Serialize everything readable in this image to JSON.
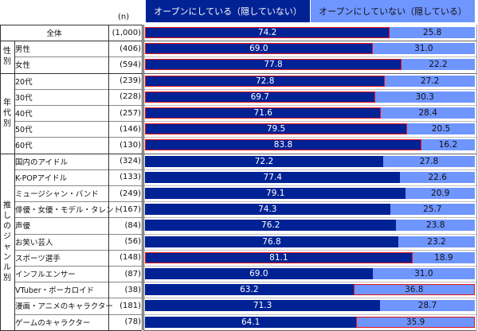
{
  "chart_data": {
    "type": "bar",
    "orientation": "horizontal",
    "stacked": true,
    "percent": true,
    "n_header": "(n)",
    "series": [
      {
        "name": "オープンにしている（隠していない）",
        "color": "#002294"
      },
      {
        "name": "オープンにしていない（隠している）",
        "color": "#6f95ff"
      }
    ],
    "highlight_color": "#e8141c",
    "groups": [
      {
        "label": "",
        "rows": [
          {
            "label": "全体",
            "n": "(1,000)",
            "open": "74.2",
            "hidden": "25.8",
            "highlight": "open"
          }
        ]
      },
      {
        "label": "性別",
        "rows": [
          {
            "label": "男性",
            "n": "(406)",
            "open": "69.0",
            "hidden": "31.0",
            "highlight": "open"
          },
          {
            "label": "女性",
            "n": "(594)",
            "open": "77.8",
            "hidden": "22.2",
            "highlight": "open"
          }
        ]
      },
      {
        "label": "年代別",
        "rows": [
          {
            "label": "20代",
            "n": "(239)",
            "open": "72.8",
            "hidden": "27.2",
            "highlight": "open"
          },
          {
            "label": "30代",
            "n": "(228)",
            "open": "69.7",
            "hidden": "30.3",
            "highlight": "open"
          },
          {
            "label": "40代",
            "n": "(257)",
            "open": "71.6",
            "hidden": "28.4",
            "highlight": "open"
          },
          {
            "label": "50代",
            "n": "(146)",
            "open": "79.5",
            "hidden": "20.5",
            "highlight": "open"
          },
          {
            "label": "60代",
            "n": "(130)",
            "open": "83.8",
            "hidden": "16.2",
            "highlight": "open"
          }
        ]
      },
      {
        "label": "推しのジャンル別",
        "rows": [
          {
            "label": "国内のアイドル",
            "n": "(324)",
            "open": "72.2",
            "hidden": "27.8",
            "highlight": ""
          },
          {
            "label": "K-POPアイドル",
            "n": "(133)",
            "open": "77.4",
            "hidden": "22.6",
            "highlight": ""
          },
          {
            "label": "ミュージシャン・バンド",
            "n": "(249)",
            "open": "79.1",
            "hidden": "20.9",
            "highlight": ""
          },
          {
            "label": "俳優・女優・モデル・タレント",
            "n": "(167)",
            "open": "74.3",
            "hidden": "25.7",
            "highlight": ""
          },
          {
            "label": "声優",
            "n": "(84)",
            "open": "76.2",
            "hidden": "23.8",
            "highlight": ""
          },
          {
            "label": "お笑い芸人",
            "n": "(56)",
            "open": "76.8",
            "hidden": "23.2",
            "highlight": ""
          },
          {
            "label": "スポーツ選手",
            "n": "(148)",
            "open": "81.1",
            "hidden": "18.9",
            "highlight": "open"
          },
          {
            "label": "インフルエンサー",
            "n": "(87)",
            "open": "69.0",
            "hidden": "31.0",
            "highlight": ""
          },
          {
            "label": "VTuber・ボーカロイド",
            "n": "(38)",
            "open": "63.2",
            "hidden": "36.8",
            "highlight": "hidden"
          },
          {
            "label": "漫画・アニメのキャラクター",
            "n": "(181)",
            "open": "71.3",
            "hidden": "28.7",
            "highlight": ""
          },
          {
            "label": "ゲームのキャラクター",
            "n": "(78)",
            "open": "64.1",
            "hidden": "35.9",
            "highlight": "hidden"
          }
        ]
      }
    ],
    "xlim": [
      0,
      100
    ]
  }
}
